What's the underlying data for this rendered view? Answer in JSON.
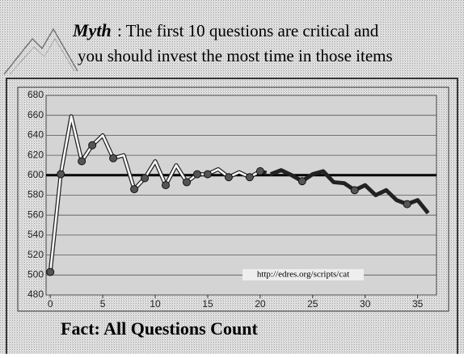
{
  "slide": {
    "myth_label": "Myth",
    "myth_lines": [
      ": The first 10 questions are critical and",
      "you should invest the most time in those items"
    ],
    "fact": "Fact: All Questions Count"
  },
  "chart_data": {
    "type": "line",
    "annotation": "http://edres.org/scripts/cat",
    "x": [
      0,
      1,
      2,
      3,
      4,
      5,
      6,
      7,
      8,
      9,
      10,
      11,
      12,
      13,
      14,
      15,
      16,
      17,
      18,
      19,
      20,
      21,
      22,
      23,
      24,
      25,
      26,
      27,
      28,
      29,
      30,
      31,
      32,
      33,
      34,
      35,
      36
    ],
    "series": [
      {
        "color": "#ffffff",
        "values": [
          503,
          601,
          659,
          614,
          630,
          640,
          617,
          620,
          586,
          597,
          614,
          590,
          610,
          593,
          601,
          601,
          606,
          598,
          603,
          598,
          604,
          601,
          605,
          600,
          594,
          601,
          604,
          593,
          592,
          585,
          590,
          580,
          585,
          575,
          571,
          575,
          562
        ],
        "dashed_after": 20
      },
      {
        "color": "#555555",
        "marker": true,
        "values": [
          503,
          601,
          null,
          614,
          630,
          null,
          617,
          null,
          586,
          597,
          null,
          590,
          null,
          593,
          601,
          601,
          null,
          598,
          null,
          598,
          604,
          null,
          null,
          null,
          594,
          null,
          null,
          null,
          null,
          585,
          null,
          null,
          null,
          null,
          571,
          null,
          null
        ]
      }
    ],
    "hline": 600,
    "xlim": [
      -0.4,
      36.8
    ],
    "ylim": [
      480,
      680
    ],
    "xticks": [
      0,
      5,
      10,
      15,
      20,
      25,
      30,
      35
    ],
    "yticks": [
      480,
      500,
      520,
      540,
      560,
      580,
      600,
      620,
      640,
      660,
      680
    ],
    "grid": true
  }
}
